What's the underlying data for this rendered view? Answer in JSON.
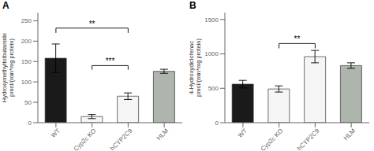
{
  "chart_data": [
    {
      "type": "bar",
      "title": "A",
      "ylabel": "Hydroxymethyltolbutamide\npmol/(min*mg protein)",
      "categories": [
        "WT",
        "Cyp2c KO",
        "hCYP2C9",
        "HLM"
      ],
      "values": [
        158,
        15,
        65,
        126
      ],
      "errors": [
        35,
        5,
        8,
        5
      ],
      "colors": [
        "#1a1a1a",
        "#f5f5f5",
        "#f5f5f5",
        "#adb5ad"
      ],
      "ylim": [
        0,
        270
      ],
      "yticks": [
        0,
        50,
        100,
        150,
        200,
        250
      ],
      "annotations": [
        {
          "x1": "WT",
          "x2": "hCYP2C9",
          "y": 232,
          "drop": 12,
          "label": "**"
        },
        {
          "x1": "Cyp2c KO",
          "x2": "hCYP2C9",
          "y": 140,
          "drop": 10,
          "label": "***"
        }
      ]
    },
    {
      "type": "bar",
      "title": "B",
      "ylabel": "4-Hydroxydiclofenac\npmol/(min*mg protein)",
      "categories": [
        "WT",
        "Cyp2c KO",
        "hCYP2C9",
        "HLM"
      ],
      "values": [
        560,
        490,
        960,
        830
      ],
      "errors": [
        55,
        45,
        90,
        40
      ],
      "colors": [
        "#1a1a1a",
        "#f5f5f5",
        "#f5f5f5",
        "#adb5ad"
      ],
      "ylim": [
        0,
        1600
      ],
      "yticks": [
        0,
        500,
        1000,
        1500
      ],
      "annotations": [
        {
          "x1": "Cyp2c KO",
          "x2": "hCYP2C9",
          "y": 1150,
          "drop": 70,
          "label": "**"
        }
      ]
    }
  ]
}
